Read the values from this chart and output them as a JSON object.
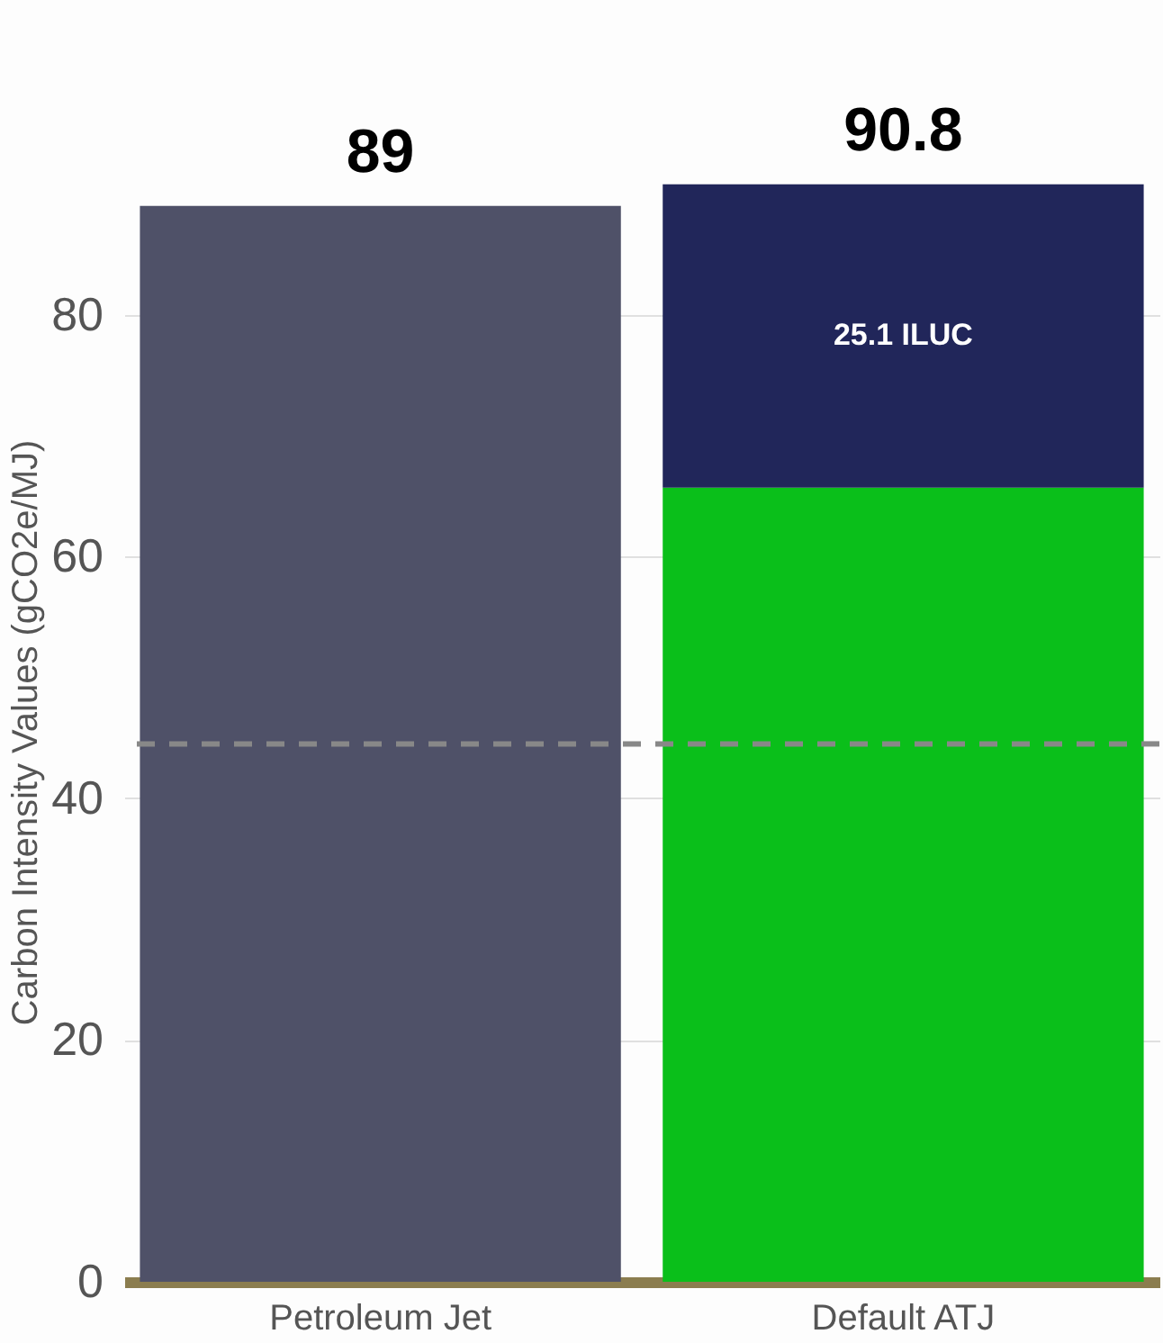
{
  "chart_data": {
    "type": "bar",
    "stacked": true,
    "ylabel": "Carbon Intensity Values (gCO2e/MJ)",
    "categories": [
      "Petroleum Jet",
      "Default ATJ"
    ],
    "series": [
      {
        "values": [
          89,
          65.7
        ],
        "colors": [
          "#4f5168",
          "#0abf1a"
        ]
      },
      {
        "values": [
          null,
          25.1
        ],
        "color": "#21265a",
        "value_labels": [
          null,
          "25.1 ILUC"
        ]
      }
    ],
    "totals": [
      "89",
      "90.8"
    ],
    "ylim": [
      0,
      91
    ],
    "yticks": [
      0,
      20,
      40,
      60,
      80
    ],
    "grid": "y",
    "legend": false,
    "ref_lines": [
      {
        "axis": "y",
        "value": 44.5,
        "color": "#888888",
        "line_style": "dashed"
      }
    ]
  }
}
